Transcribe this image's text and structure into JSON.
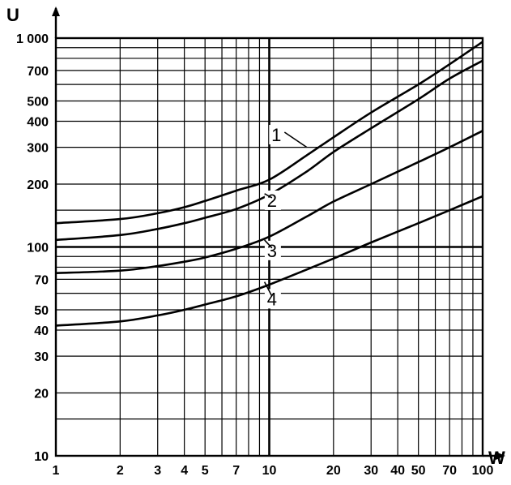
{
  "chart_data": {
    "type": "line",
    "title": "",
    "xlabel": "W",
    "ylabel": "U",
    "x_scale": "log",
    "y_scale": "log",
    "xlim": [
      1,
      100
    ],
    "ylim": [
      10,
      1000
    ],
    "grid": true,
    "x_tick_labels": [
      {
        "value": 1,
        "label": "1"
      },
      {
        "value": 2,
        "label": "2"
      },
      {
        "value": 3,
        "label": "3"
      },
      {
        "value": 4,
        "label": "4"
      },
      {
        "value": 5,
        "label": "5"
      },
      {
        "value": 7,
        "label": "7"
      },
      {
        "value": 10,
        "label": "10"
      },
      {
        "value": 20,
        "label": "20"
      },
      {
        "value": 30,
        "label": "30"
      },
      {
        "value": 40,
        "label": "40"
      },
      {
        "value": 50,
        "label": "50"
      },
      {
        "value": 70,
        "label": "70"
      },
      {
        "value": 100,
        "label": "100"
      }
    ],
    "y_tick_labels": [
      {
        "value": 10,
        "label": "10"
      },
      {
        "value": 20,
        "label": "20"
      },
      {
        "value": 30,
        "label": "30"
      },
      {
        "value": 40,
        "label": "40"
      },
      {
        "value": 50,
        "label": "50"
      },
      {
        "value": 70,
        "label": "70"
      },
      {
        "value": 100,
        "label": "100"
      },
      {
        "value": 200,
        "label": "200"
      },
      {
        "value": 300,
        "label": "300"
      },
      {
        "value": 400,
        "label": "400"
      },
      {
        "value": 500,
        "label": "500"
      },
      {
        "value": 700,
        "label": "700"
      },
      {
        "value": 1000,
        "label": "1 000"
      }
    ],
    "x_grid_values": [
      1,
      2,
      3,
      4,
      5,
      6,
      7,
      8,
      9,
      10,
      20,
      30,
      40,
      50,
      60,
      70,
      80,
      90,
      100
    ],
    "y_grid_values": [
      10,
      15,
      20,
      30,
      40,
      50,
      60,
      70,
      80,
      90,
      100,
      150,
      200,
      300,
      400,
      500,
      600,
      700,
      800,
      900,
      1000
    ],
    "series": [
      {
        "label": "1",
        "label_at": {
          "x": 10.8,
          "u": 330
        },
        "leader_to": {
          "x": 15,
          "u": 300
        },
        "x": [
          1,
          2,
          3,
          4,
          5,
          7,
          10,
          15,
          20,
          30,
          50,
          70,
          100
        ],
        "values": [
          130,
          136,
          145,
          155,
          166,
          186,
          210,
          275,
          335,
          440,
          600,
          750,
          960
        ]
      },
      {
        "label": "2",
        "label_at": {
          "x": 10.3,
          "u": 160
        },
        "leader_to": {
          "x": 9.5,
          "u": 180
        },
        "x": [
          1,
          2,
          3,
          4,
          5,
          7,
          10,
          15,
          20,
          30,
          50,
          70,
          100
        ],
        "values": [
          108,
          114,
          122,
          130,
          138,
          152,
          178,
          230,
          285,
          370,
          510,
          640,
          780
        ]
      },
      {
        "label": "3",
        "label_at": {
          "x": 10.3,
          "u": 92
        },
        "leader_to": {
          "x": 9.5,
          "u": 108
        },
        "x": [
          1,
          2,
          3,
          4,
          5,
          7,
          10,
          15,
          20,
          30,
          50,
          70,
          100
        ],
        "values": [
          75,
          77,
          81,
          85,
          89,
          98,
          112,
          140,
          165,
          200,
          255,
          300,
          360
        ]
      },
      {
        "label": "4",
        "label_at": {
          "x": 10.3,
          "u": 54
        },
        "leader_to": {
          "x": 9.5,
          "u": 68
        },
        "x": [
          1,
          2,
          3,
          4,
          5,
          7,
          10,
          15,
          20,
          30,
          50,
          70,
          100
        ],
        "values": [
          42,
          44,
          47,
          50,
          53,
          58,
          66,
          78,
          88,
          105,
          130,
          150,
          175
        ]
      }
    ]
  }
}
